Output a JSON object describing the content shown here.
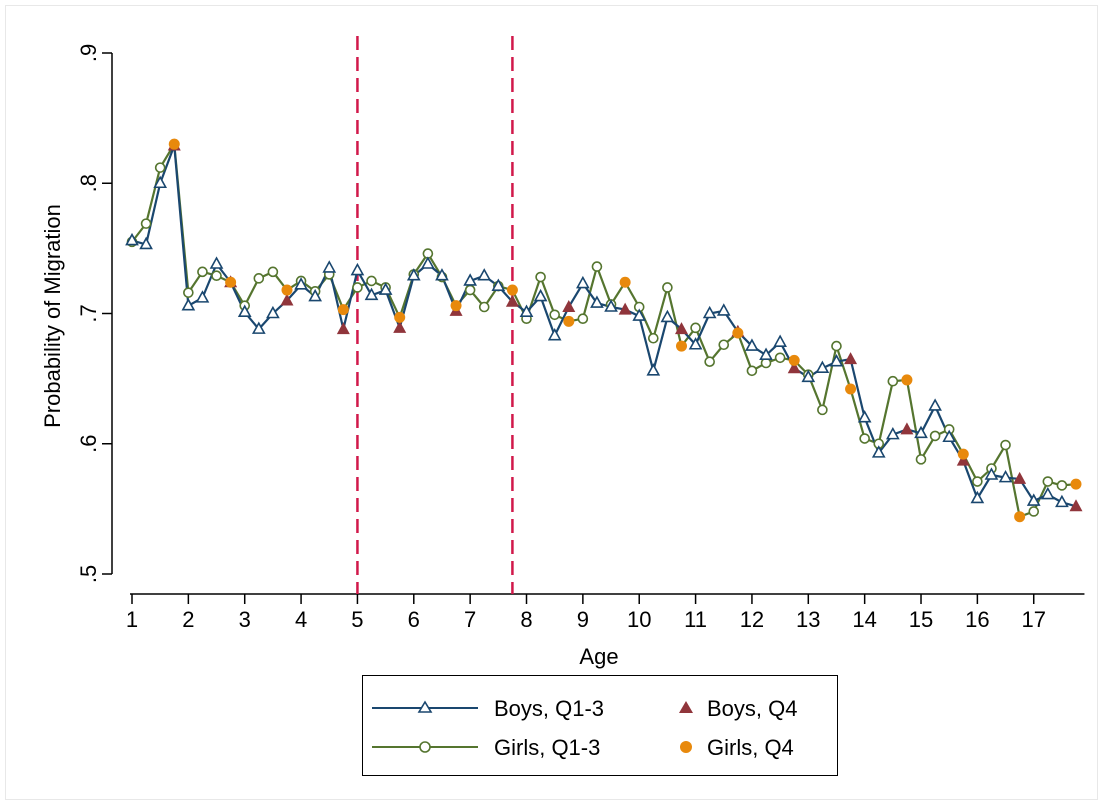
{
  "chart_data": {
    "type": "line",
    "xlabel": "Age",
    "ylabel": "Probability of Migration",
    "xlim": [
      0.75,
      18.0
    ],
    "ylim": [
      0.5,
      0.9
    ],
    "xticks": [
      1,
      2,
      3,
      4,
      5,
      6,
      7,
      8,
      9,
      10,
      11,
      12,
      13,
      14,
      15,
      16,
      17
    ],
    "xtick_labels": [
      "1",
      "2",
      "3",
      "4",
      "5",
      "6",
      "7",
      "8",
      "9",
      "10",
      "11",
      "12",
      "13",
      "14",
      "15",
      "16",
      "17"
    ],
    "yticks": [
      0.5,
      0.6,
      0.7,
      0.8,
      0.9
    ],
    "ytick_labels": [
      ".5",
      ".6",
      ".7",
      ".8",
      ".9"
    ],
    "grid": false,
    "reference_lines_x": [
      5,
      7.75
    ],
    "legend": {
      "placement": "bottom",
      "entries": [
        "Boys, Q1-3",
        "Boys, Q4",
        "Girls, Q1-3",
        "Girls, Q4"
      ]
    },
    "colors": {
      "boys_line": "#1a476f",
      "girls_line": "#55752f",
      "boys_q4": "#90353b",
      "girls_q4": "#e8890c",
      "ref_line": "#d1184a"
    },
    "series": [
      {
        "name": "Boys, Q1-3",
        "x": [
          1.0,
          1.25,
          1.5,
          1.75,
          2.0,
          2.25,
          2.5,
          2.75,
          3.0,
          3.25,
          3.5,
          3.75,
          4.0,
          4.25,
          4.5,
          4.75,
          5.0,
          5.25,
          5.5,
          5.75,
          6.0,
          6.25,
          6.5,
          6.75,
          7.0,
          7.25,
          7.5,
          7.75,
          8.0,
          8.25,
          8.5,
          8.75,
          9.0,
          9.25,
          9.5,
          9.75,
          10.0,
          10.25,
          10.5,
          10.75,
          11.0,
          11.25,
          11.5,
          11.75,
          12.0,
          12.25,
          12.5,
          12.75,
          13.0,
          13.25,
          13.5,
          13.75,
          14.0,
          14.25,
          14.5,
          14.75,
          15.0,
          15.25,
          15.5,
          15.75,
          16.0,
          16.25,
          16.5,
          16.75,
          17.0,
          17.25,
          17.5,
          17.75
        ],
        "y": [
          0.756,
          0.753,
          0.8,
          0.829,
          0.706,
          0.712,
          0.738,
          0.724,
          0.701,
          0.688,
          0.7,
          0.71,
          0.722,
          0.713,
          0.735,
          0.688,
          0.733,
          0.714,
          0.718,
          0.689,
          0.729,
          0.738,
          0.729,
          0.702,
          0.725,
          0.729,
          0.721,
          0.709,
          0.701,
          0.713,
          0.683,
          0.705,
          0.723,
          0.708,
          0.705,
          0.703,
          0.698,
          0.656,
          0.697,
          0.688,
          0.676,
          0.7,
          0.702,
          0.686,
          0.675,
          0.668,
          0.678,
          0.658,
          0.651,
          0.658,
          0.663,
          0.665,
          0.62,
          0.593,
          0.607,
          0.611,
          0.608,
          0.629,
          0.605,
          0.587,
          0.558,
          0.576,
          0.574,
          0.573,
          0.556,
          0.561,
          0.555,
          0.552
        ]
      },
      {
        "name": "Boys, Q4",
        "x": [
          1.75,
          2.75,
          3.75,
          4.75,
          5.75,
          6.75,
          7.75,
          8.75,
          9.75,
          10.75,
          11.75,
          12.75,
          13.75,
          14.75,
          15.75,
          16.75,
          17.75
        ],
        "y": [
          0.829,
          0.724,
          0.71,
          0.688,
          0.689,
          0.702,
          0.709,
          0.705,
          0.703,
          0.688,
          0.686,
          0.658,
          0.665,
          0.611,
          0.587,
          0.573,
          0.552
        ]
      },
      {
        "name": "Girls, Q1-3",
        "x": [
          1.0,
          1.25,
          1.5,
          1.75,
          2.0,
          2.25,
          2.5,
          2.75,
          3.0,
          3.25,
          3.5,
          3.75,
          4.0,
          4.25,
          4.5,
          4.75,
          5.0,
          5.25,
          5.5,
          5.75,
          6.0,
          6.25,
          6.5,
          6.75,
          7.0,
          7.25,
          7.5,
          7.75,
          8.0,
          8.25,
          8.5,
          8.75,
          9.0,
          9.25,
          9.5,
          9.75,
          10.0,
          10.25,
          10.5,
          10.75,
          11.0,
          11.25,
          11.5,
          11.75,
          12.0,
          12.25,
          12.5,
          12.75,
          13.0,
          13.25,
          13.5,
          13.75,
          14.0,
          14.25,
          14.5,
          14.75,
          15.0,
          15.25,
          15.5,
          15.75,
          16.0,
          16.25,
          16.5,
          16.75,
          17.0,
          17.25,
          17.5,
          17.75
        ],
        "y": [
          0.755,
          0.769,
          0.812,
          0.83,
          0.716,
          0.732,
          0.729,
          0.724,
          0.706,
          0.727,
          0.732,
          0.718,
          0.725,
          0.717,
          0.73,
          0.703,
          0.72,
          0.725,
          0.72,
          0.697,
          0.73,
          0.746,
          0.728,
          0.706,
          0.718,
          0.705,
          0.721,
          0.718,
          0.696,
          0.728,
          0.699,
          0.694,
          0.696,
          0.736,
          0.707,
          0.724,
          0.705,
          0.681,
          0.72,
          0.675,
          0.689,
          0.663,
          0.676,
          0.685,
          0.656,
          0.662,
          0.666,
          0.664,
          0.653,
          0.626,
          0.675,
          0.642,
          0.604,
          0.6,
          0.648,
          0.649,
          0.588,
          0.606,
          0.611,
          0.592,
          0.571,
          0.581,
          0.599,
          0.544,
          0.548,
          0.571,
          0.568,
          0.569
        ]
      },
      {
        "name": "Girls, Q4",
        "x": [
          1.75,
          2.75,
          3.75,
          4.75,
          5.75,
          6.75,
          7.75,
          8.75,
          9.75,
          10.75,
          11.75,
          12.75,
          13.75,
          14.75,
          15.75,
          16.75,
          17.75
        ],
        "y": [
          0.83,
          0.724,
          0.718,
          0.703,
          0.697,
          0.706,
          0.718,
          0.694,
          0.724,
          0.675,
          0.685,
          0.664,
          0.642,
          0.649,
          0.592,
          0.544,
          0.569
        ]
      }
    ]
  }
}
